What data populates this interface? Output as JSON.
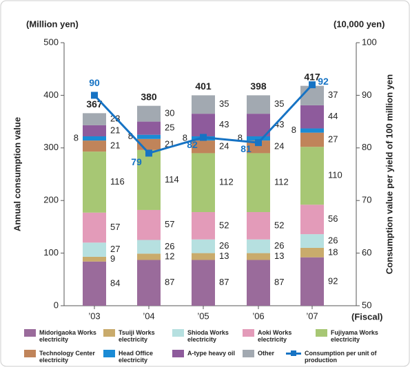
{
  "chart_data": {
    "type": "bar",
    "y_unit": "(Million yen)",
    "y2_unit": "(10,000 yen)",
    "ylabel": "Annual consumption value",
    "y2label": "Consumption value per yield of 100 million yen",
    "x_unit": "(Fiscal)",
    "categories": [
      "’03",
      "’04",
      "’05",
      "’06",
      "’07"
    ],
    "ylim": [
      0,
      500
    ],
    "yticks": [
      0,
      100,
      200,
      300,
      400,
      500
    ],
    "y2lim": [
      50,
      100
    ],
    "y2ticks": [
      50,
      60,
      70,
      80,
      90,
      100
    ],
    "stacked": true,
    "series": [
      {
        "name": "Midorigaoka Works electricity",
        "color": "#9a6b9b",
        "values": [
          84,
          87,
          87,
          87,
          92
        ]
      },
      {
        "name": "Tsuiji Works electricity",
        "color": "#c9ab6c",
        "values": [
          9,
          12,
          13,
          13,
          18
        ]
      },
      {
        "name": "Shioda Works electricity",
        "color": "#b6e0e0",
        "values": [
          27,
          26,
          26,
          26,
          26
        ]
      },
      {
        "name": "Aoki Works electricity",
        "color": "#e39bb9",
        "values": [
          57,
          57,
          52,
          52,
          56
        ]
      },
      {
        "name": "Fujiyama Works electricity",
        "color": "#a7c774",
        "values": [
          116,
          114,
          112,
          112,
          110
        ]
      },
      {
        "name": "Technology Center electricity",
        "color": "#c0845a",
        "values": [
          21,
          21,
          24,
          24,
          27
        ]
      },
      {
        "name": "Head Office electricity",
        "color": "#1b8bd5",
        "values": [
          8,
          8,
          8,
          8,
          8
        ]
      },
      {
        "name": "A-type heavy oil",
        "color": "#8e5b9c",
        "values": [
          21,
          25,
          43,
          43,
          44
        ]
      },
      {
        "name": "Other",
        "color": "#a2a9b1",
        "values": [
          23,
          30,
          35,
          35,
          37
        ]
      },
      {
        "name": "Consumption per unit of production",
        "color": "#1673c4",
        "type": "line",
        "axis": "y2",
        "values": [
          90,
          79,
          82,
          81,
          92
        ]
      }
    ],
    "totals": [
      367,
      380,
      401,
      398,
      417
    ]
  }
}
